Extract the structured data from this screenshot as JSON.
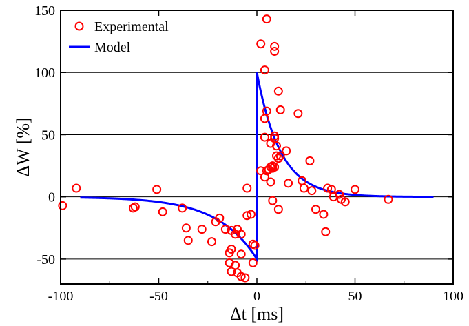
{
  "chart_data": {
    "type": "scatter",
    "xlabel": "Δt [ms]",
    "ylabel": "ΔW [%]",
    "xlim": [
      -100,
      100
    ],
    "ylim": [
      -70,
      150
    ],
    "x_ticks": [
      -100,
      -50,
      0,
      50,
      100
    ],
    "y_ticks": [
      -50,
      0,
      50,
      100,
      150
    ],
    "grid": "horizontal",
    "legend_position": "top-left",
    "series": [
      {
        "name": "Experimental",
        "kind": "scatter",
        "marker": "open-circle",
        "color": "#ff0000",
        "points": [
          [
            -99,
            -7
          ],
          [
            -92,
            7
          ],
          [
            -63,
            -9
          ],
          [
            -62,
            -8
          ],
          [
            -51,
            6
          ],
          [
            -48,
            -12
          ],
          [
            -38,
            -9
          ],
          [
            -36,
            -25
          ],
          [
            -35,
            -35
          ],
          [
            -28,
            -26
          ],
          [
            -23,
            -36
          ],
          [
            -21,
            -20
          ],
          [
            -19,
            -17
          ],
          [
            -16,
            -26
          ],
          [
            -13,
            -27
          ],
          [
            -14,
            -45
          ],
          [
            -13,
            -42
          ],
          [
            -14,
            -53
          ],
          [
            -13,
            -60
          ],
          [
            -10,
            -26
          ],
          [
            -11,
            -30
          ],
          [
            -11,
            -55
          ],
          [
            -10,
            -61
          ],
          [
            -8,
            -64
          ],
          [
            -6,
            -65
          ],
          [
            -8,
            -46
          ],
          [
            -8,
            -30
          ],
          [
            -5,
            -15
          ],
          [
            -5,
            7
          ],
          [
            -3,
            -14
          ],
          [
            -2,
            -38
          ],
          [
            -2,
            -53
          ],
          [
            -1,
            -39
          ],
          [
            2,
            123
          ],
          [
            2,
            21
          ],
          [
            4,
            102
          ],
          [
            4,
            63
          ],
          [
            4,
            48
          ],
          [
            4,
            16
          ],
          [
            5,
            143
          ],
          [
            5,
            69
          ],
          [
            5,
            21
          ],
          [
            6,
            22
          ],
          [
            7,
            43
          ],
          [
            7,
            24
          ],
          [
            7,
            12
          ],
          [
            8,
            25
          ],
          [
            8,
            -3
          ],
          [
            8,
            23
          ],
          [
            9,
            121
          ],
          [
            9,
            117
          ],
          [
            9,
            49
          ],
          [
            9,
            47
          ],
          [
            9,
            24
          ],
          [
            10,
            41
          ],
          [
            10,
            33
          ],
          [
            11,
            85
          ],
          [
            11,
            -10
          ],
          [
            11,
            31
          ],
          [
            12,
            70
          ],
          [
            12,
            33
          ],
          [
            15,
            37
          ],
          [
            16,
            11
          ],
          [
            21,
            67
          ],
          [
            23,
            13
          ],
          [
            24,
            7
          ],
          [
            27,
            29
          ],
          [
            28,
            5
          ],
          [
            30,
            -10
          ],
          [
            34,
            -14
          ],
          [
            35,
            -28
          ],
          [
            36,
            7
          ],
          [
            38,
            6
          ],
          [
            39,
            0
          ],
          [
            42,
            2
          ],
          [
            43,
            -2
          ],
          [
            45,
            -4
          ],
          [
            50,
            6
          ],
          [
            67,
            -2
          ]
        ]
      },
      {
        "name": "Model",
        "kind": "line",
        "color": "#0000ff",
        "function": "x<0: -50*exp(x/20); x>0: 100*exp(-x/12)",
        "x_range": [
          -90,
          90
        ]
      }
    ]
  }
}
